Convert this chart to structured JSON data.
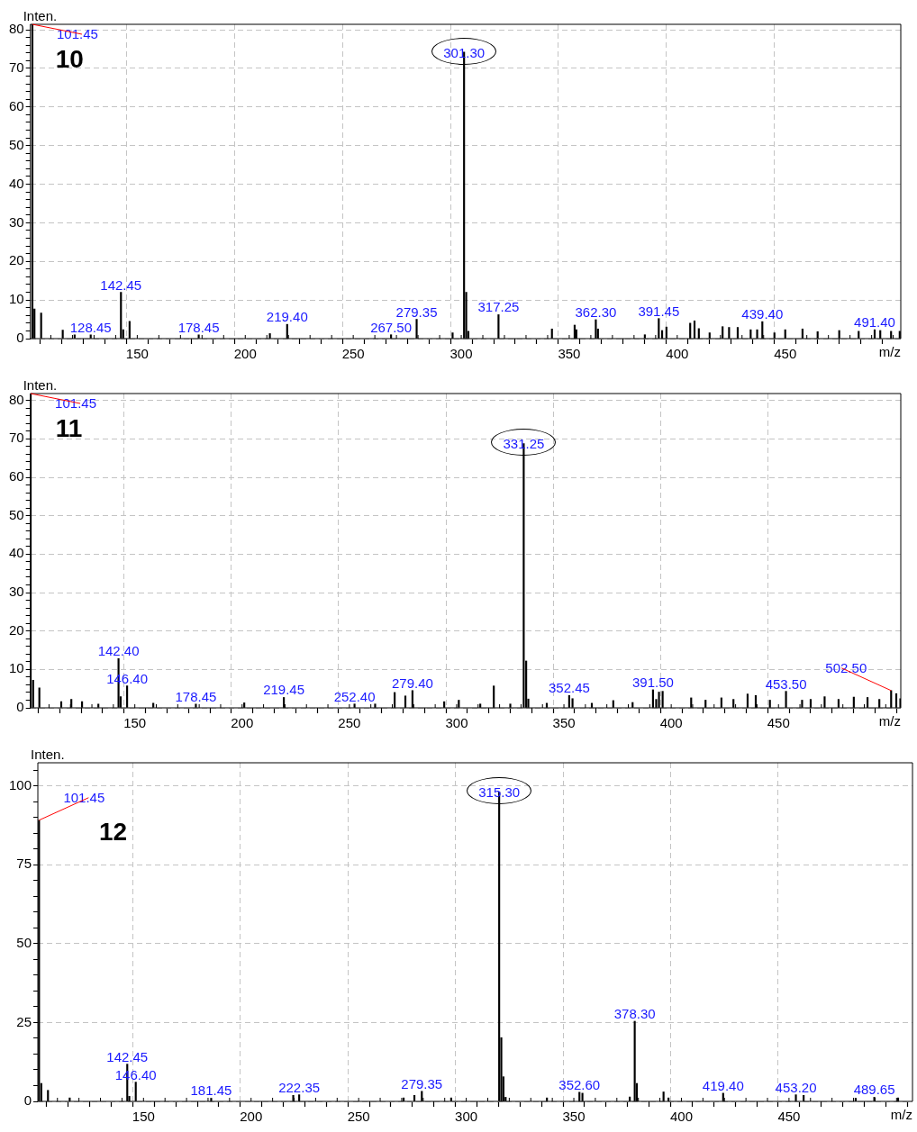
{
  "chart_data": [
    {
      "type": "bar",
      "xlabel": "m/z",
      "ylabel": "Inten.",
      "annotations": [
        "10",
        {
          "text": "101.45",
          "x": 101.45,
          "y": 81.4
        },
        {
          "text": "128.45",
          "x": 128.45,
          "y": 1.0
        },
        {
          "text": "142.45",
          "x": 142.45,
          "y": 12.0
        },
        {
          "text": "178.45",
          "x": 178.45,
          "y": 1.0
        },
        {
          "text": "219.40",
          "x": 219.4,
          "y": 3.7
        },
        {
          "text": "267.50",
          "x": 267.5,
          "y": 1.0
        },
        {
          "text": "279.35",
          "x": 279.35,
          "y": 5.0
        },
        {
          "text": "301.30",
          "x": 301.3,
          "y": 74.2
        },
        {
          "text": "317.25",
          "x": 317.25,
          "y": 6.2
        },
        {
          "text": "362.30",
          "x": 362.3,
          "y": 4.9
        },
        {
          "text": "391.45",
          "x": 391.45,
          "y": 5.2
        },
        {
          "text": "439.40",
          "x": 439.4,
          "y": 4.4
        },
        {
          "text": "491.40",
          "x": 491.4,
          "y": 2.3
        }
      ],
      "color": "#000000",
      "grid": true,
      "xlim": [
        100.5,
        503.5
      ],
      "ylim": [
        0,
        81.4
      ],
      "xticks": [
        {
          "value": 110,
          "label": null
        },
        {
          "value": 120,
          "label": null
        },
        {
          "value": 130,
          "label": null
        },
        {
          "value": 140,
          "label": null
        },
        150,
        {
          "value": 160,
          "label": null
        },
        {
          "value": 170,
          "label": null
        },
        {
          "value": 180,
          "label": null
        },
        {
          "value": 190,
          "label": null
        },
        200,
        {
          "value": 210,
          "label": null
        },
        {
          "value": 220,
          "label": null
        },
        {
          "value": 230,
          "label": null
        },
        {
          "value": 240,
          "label": null
        },
        250,
        {
          "value": 260,
          "label": null
        },
        {
          "value": 270,
          "label": null
        },
        {
          "value": 280,
          "label": null
        },
        {
          "value": 290,
          "label": null
        },
        300,
        {
          "value": 310,
          "label": null
        },
        {
          "value": 320,
          "label": null
        },
        {
          "value": 330,
          "label": null
        },
        {
          "value": 340,
          "label": null
        },
        350,
        {
          "value": 360,
          "label": null
        },
        {
          "value": 370,
          "label": null
        },
        {
          "value": 380,
          "label": null
        },
        {
          "value": 390,
          "label": null
        },
        400,
        {
          "value": 410,
          "label": null
        },
        {
          "value": 420,
          "label": null
        },
        {
          "value": 430,
          "label": null
        },
        {
          "value": 440,
          "label": null
        },
        450,
        {
          "value": 460,
          "label": null
        },
        {
          "value": 470,
          "label": null
        },
        {
          "value": 480,
          "label": null
        },
        {
          "value": 490,
          "label": null
        },
        {
          "value": 500,
          "label": null
        }
      ],
      "yticks": [
        0,
        {
          "value": 2,
          "label": null
        },
        {
          "value": 4,
          "label": null
        },
        {
          "value": 6,
          "label": null
        },
        {
          "value": 8,
          "label": null
        },
        10,
        {
          "value": 12,
          "label": null
        },
        {
          "value": 14,
          "label": null
        },
        {
          "value": 16,
          "label": null
        },
        {
          "value": 18,
          "label": null
        },
        20,
        {
          "value": 22,
          "label": null
        },
        {
          "value": 24,
          "label": null
        },
        {
          "value": 26,
          "label": null
        },
        {
          "value": 28,
          "label": null
        },
        30,
        {
          "value": 32,
          "label": null
        },
        {
          "value": 34,
          "label": null
        },
        {
          "value": 36,
          "label": null
        },
        {
          "value": 38,
          "label": null
        },
        40,
        {
          "value": 42,
          "label": null
        },
        {
          "value": 44,
          "label": null
        },
        {
          "value": 46,
          "label": null
        },
        {
          "value": 48,
          "label": null
        },
        50,
        {
          "value": 52,
          "label": null
        },
        {
          "value": 54,
          "label": null
        },
        {
          "value": 56,
          "label": null
        },
        {
          "value": 58,
          "label": null
        },
        60,
        {
          "value": 62,
          "label": null
        },
        {
          "value": 64,
          "label": null
        },
        {
          "value": 66,
          "label": null
        },
        {
          "value": 68,
          "label": null
        },
        70,
        {
          "value": 72,
          "label": null
        },
        {
          "value": 74,
          "label": null
        },
        {
          "value": 76,
          "label": null
        },
        {
          "value": 78,
          "label": null
        },
        80
      ],
      "x": [
        101.45,
        102.4,
        105.5,
        115.5,
        121,
        128.45,
        142.45,
        143.5,
        146.45,
        178.45,
        211.4,
        219.4,
        267.5,
        279.35,
        296,
        301.3,
        302.3,
        303.3,
        317.25,
        342,
        352.5,
        353.3,
        362.3,
        363.3,
        385,
        391.45,
        393,
        395,
        406,
        408,
        410,
        415,
        421,
        424,
        428,
        434,
        437,
        439.4,
        445,
        450,
        458,
        465,
        475,
        484,
        491.4,
        494,
        499,
        503
      ],
      "values": [
        81.4,
        7.7,
        6.6,
        2.2,
        1.0,
        1.0,
        12.0,
        2.3,
        4.5,
        1.0,
        1.3,
        3.7,
        1.0,
        5.0,
        1.5,
        74.2,
        12.0,
        1.9,
        6.2,
        2.5,
        3.5,
        2.3,
        4.9,
        2.5,
        1.0,
        5.2,
        2.1,
        3.0,
        4.0,
        4.6,
        2.6,
        1.5,
        3.1,
        2.9,
        2.9,
        2.3,
        2.3,
        4.4,
        1.5,
        2.3,
        2.5,
        1.8,
        2.1,
        1.9,
        2.3,
        2.1,
        1.9,
        1.9
      ]
    },
    {
      "type": "bar",
      "xlabel": "m/z",
      "ylabel": "Inten.",
      "annotations": [
        "11",
        {
          "text": "101.45",
          "x": 101.45,
          "y": 81.8
        },
        {
          "text": "142.40",
          "x": 142.4,
          "y": 12.8
        },
        {
          "text": "146.40",
          "x": 146.4,
          "y": 5.7
        },
        {
          "text": "178.45",
          "x": 178.45,
          "y": 1.0
        },
        {
          "text": "219.45",
          "x": 219.45,
          "y": 2.7
        },
        {
          "text": "252.40",
          "x": 252.4,
          "y": 1.0
        },
        {
          "text": "279.40",
          "x": 279.4,
          "y": 4.5
        },
        {
          "text": "331.25",
          "x": 331.25,
          "y": 68.8
        },
        {
          "text": "352.45",
          "x": 352.45,
          "y": 3.2
        },
        {
          "text": "391.50",
          "x": 391.5,
          "y": 4.7
        },
        {
          "text": "453.50",
          "x": 453.5,
          "y": 4.3
        },
        {
          "text": "502.50",
          "x": 502.5,
          "y": 4.5
        }
      ],
      "color": "#000000",
      "grid": true,
      "xlim": [
        101.3,
        507
      ],
      "ylim": [
        0,
        81.8
      ],
      "xticks": [
        {
          "value": 110,
          "label": null
        },
        {
          "value": 120,
          "label": null
        },
        {
          "value": 130,
          "label": null
        },
        {
          "value": 140,
          "label": null
        },
        150,
        {
          "value": 160,
          "label": null
        },
        {
          "value": 170,
          "label": null
        },
        {
          "value": 180,
          "label": null
        },
        {
          "value": 190,
          "label": null
        },
        200,
        {
          "value": 210,
          "label": null
        },
        {
          "value": 220,
          "label": null
        },
        {
          "value": 230,
          "label": null
        },
        {
          "value": 240,
          "label": null
        },
        250,
        {
          "value": 260,
          "label": null
        },
        {
          "value": 270,
          "label": null
        },
        {
          "value": 280,
          "label": null
        },
        {
          "value": 290,
          "label": null
        },
        300,
        {
          "value": 310,
          "label": null
        },
        {
          "value": 320,
          "label": null
        },
        {
          "value": 330,
          "label": null
        },
        {
          "value": 340,
          "label": null
        },
        350,
        {
          "value": 360,
          "label": null
        },
        {
          "value": 370,
          "label": null
        },
        {
          "value": 380,
          "label": null
        },
        {
          "value": 390,
          "label": null
        },
        400,
        {
          "value": 410,
          "label": null
        },
        {
          "value": 420,
          "label": null
        },
        {
          "value": 430,
          "label": null
        },
        {
          "value": 440,
          "label": null
        },
        450,
        {
          "value": 460,
          "label": null
        },
        {
          "value": 470,
          "label": null
        },
        {
          "value": 480,
          "label": null
        },
        {
          "value": 490,
          "label": null
        },
        {
          "value": 500,
          "label": null
        }
      ],
      "yticks": [
        0,
        {
          "value": 2,
          "label": null
        },
        {
          "value": 4,
          "label": null
        },
        {
          "value": 6,
          "label": null
        },
        {
          "value": 8,
          "label": null
        },
        10,
        {
          "value": 12,
          "label": null
        },
        {
          "value": 14,
          "label": null
        },
        {
          "value": 16,
          "label": null
        },
        {
          "value": 18,
          "label": null
        },
        20,
        {
          "value": 22,
          "label": null
        },
        {
          "value": 24,
          "label": null
        },
        {
          "value": 26,
          "label": null
        },
        {
          "value": 28,
          "label": null
        },
        30,
        {
          "value": 32,
          "label": null
        },
        {
          "value": 34,
          "label": null
        },
        {
          "value": 36,
          "label": null
        },
        {
          "value": 38,
          "label": null
        },
        40,
        {
          "value": 42,
          "label": null
        },
        {
          "value": 44,
          "label": null
        },
        {
          "value": 46,
          "label": null
        },
        {
          "value": 48,
          "label": null
        },
        50,
        {
          "value": 52,
          "label": null
        },
        {
          "value": 54,
          "label": null
        },
        {
          "value": 56,
          "label": null
        },
        {
          "value": 58,
          "label": null
        },
        60,
        {
          "value": 62,
          "label": null
        },
        {
          "value": 64,
          "label": null
        },
        {
          "value": 66,
          "label": null
        },
        {
          "value": 68,
          "label": null
        },
        70,
        {
          "value": 72,
          "label": null
        },
        {
          "value": 74,
          "label": null
        },
        {
          "value": 76,
          "label": null
        },
        {
          "value": 78,
          "label": null
        },
        80
      ],
      "x": [
        101.45,
        102.6,
        105.5,
        115.7,
        120.4,
        125.4,
        133,
        142.4,
        143.4,
        146.4,
        158.6,
        178.45,
        201,
        219.45,
        252.4,
        262,
        271.1,
        276.1,
        279.4,
        294.2,
        301,
        311,
        317.3,
        325,
        331.25,
        332.4,
        333.4,
        342,
        352.45,
        354,
        363,
        373,
        382,
        391.5,
        393,
        394.3,
        396,
        409.3,
        416,
        423.4,
        429,
        435.6,
        439.4,
        446,
        453.5,
        461,
        465,
        471.5,
        478,
        485.1,
        491.5,
        497,
        502.5,
        504.9,
        506.8
      ],
      "values": [
        81.8,
        7.2,
        5.2,
        1.6,
        2.2,
        1.6,
        1.0,
        12.8,
        2.9,
        5.7,
        1.2,
        1.0,
        1.3,
        2.7,
        1.0,
        1.0,
        4.0,
        3.1,
        4.5,
        1.6,
        2.0,
        1.0,
        5.7,
        1.0,
        68.8,
        12.2,
        2.3,
        1.2,
        3.2,
        2.4,
        1.2,
        1.9,
        1.4,
        4.7,
        2.2,
        4.1,
        4.3,
        2.6,
        2.0,
        2.6,
        2.2,
        3.6,
        3.2,
        2.0,
        4.3,
        2.0,
        2.2,
        2.9,
        2.2,
        2.8,
        2.7,
        2.2,
        4.5,
        3.7,
        2.4
      ]
    },
    {
      "type": "bar",
      "xlabel": "m/z",
      "ylabel": "Inten.",
      "annotations": [
        "12",
        {
          "text": "101.45",
          "x": 101.45,
          "y": 89.1
        },
        {
          "text": "142.45",
          "x": 142.45,
          "y": 11.8
        },
        {
          "text": "146.40",
          "x": 146.4,
          "y": 6.1
        },
        {
          "text": "181.45",
          "x": 181.45,
          "y": 1.0
        },
        {
          "text": "222.35",
          "x": 222.35,
          "y": 2.1
        },
        {
          "text": "279.35",
          "x": 279.35,
          "y": 3.2
        },
        {
          "text": "315.30",
          "x": 315.3,
          "y": 98.1
        },
        {
          "text": "352.60",
          "x": 352.6,
          "y": 2.9
        },
        {
          "text": "378.30",
          "x": 378.3,
          "y": 25.4
        },
        {
          "text": "419.40",
          "x": 419.4,
          "y": 2.6
        },
        {
          "text": "453.20",
          "x": 453.2,
          "y": 2.1
        },
        {
          "text": "489.65",
          "x": 489.65,
          "y": 1.3
        }
      ],
      "color": "#000000",
      "grid": true,
      "xlim": [
        100.9,
        507.4
      ],
      "ylim": [
        0,
        107.3
      ],
      "xticks": [
        {
          "value": 110,
          "label": null
        },
        {
          "value": 120,
          "label": null
        },
        {
          "value": 130,
          "label": null
        },
        {
          "value": 140,
          "label": null
        },
        150,
        {
          "value": 160,
          "label": null
        },
        {
          "value": 170,
          "label": null
        },
        {
          "value": 180,
          "label": null
        },
        {
          "value": 190,
          "label": null
        },
        200,
        {
          "value": 210,
          "label": null
        },
        {
          "value": 220,
          "label": null
        },
        {
          "value": 230,
          "label": null
        },
        {
          "value": 240,
          "label": null
        },
        250,
        {
          "value": 260,
          "label": null
        },
        {
          "value": 270,
          "label": null
        },
        {
          "value": 280,
          "label": null
        },
        {
          "value": 290,
          "label": null
        },
        300,
        {
          "value": 310,
          "label": null
        },
        {
          "value": 320,
          "label": null
        },
        {
          "value": 330,
          "label": null
        },
        {
          "value": 340,
          "label": null
        },
        350,
        {
          "value": 360,
          "label": null
        },
        {
          "value": 370,
          "label": null
        },
        {
          "value": 380,
          "label": null
        },
        {
          "value": 390,
          "label": null
        },
        400,
        {
          "value": 410,
          "label": null
        },
        {
          "value": 420,
          "label": null
        },
        {
          "value": 430,
          "label": null
        },
        {
          "value": 440,
          "label": null
        },
        450,
        {
          "value": 460,
          "label": null
        },
        {
          "value": 470,
          "label": null
        },
        {
          "value": 480,
          "label": null
        },
        {
          "value": 490,
          "label": null
        },
        {
          "value": 500,
          "label": null
        }
      ],
      "yticks": [
        0,
        {
          "value": 5,
          "label": null
        },
        {
          "value": 10,
          "label": null
        },
        {
          "value": 15,
          "label": null
        },
        {
          "value": 20,
          "label": null
        },
        25,
        {
          "value": 30,
          "label": null
        },
        {
          "value": 35,
          "label": null
        },
        {
          "value": 40,
          "label": null
        },
        {
          "value": 45,
          "label": null
        },
        50,
        {
          "value": 55,
          "label": null
        },
        {
          "value": 60,
          "label": null
        },
        {
          "value": 65,
          "label": null
        },
        {
          "value": 70,
          "label": null
        },
        75,
        {
          "value": 80,
          "label": null
        },
        {
          "value": 85,
          "label": null
        },
        {
          "value": 90,
          "label": null
        },
        {
          "value": 95,
          "label": null
        },
        100,
        {
          "value": 105,
          "label": null
        }
      ],
      "x": [
        101.45,
        102.5,
        105.6,
        115.7,
        142.45,
        143.4,
        146.4,
        181.45,
        219.6,
        222.35,
        270.9,
        275.9,
        279.35,
        293,
        315.3,
        316.3,
        317.3,
        318.3,
        337.5,
        352.6,
        354,
        376,
        378.3,
        379.3,
        391.7,
        394,
        419.4,
        453.2,
        456.8,
        481,
        489.65,
        500.7
      ],
      "values": [
        89.1,
        5.7,
        3.5,
        1.1,
        11.8,
        1.6,
        6.1,
        1.0,
        1.9,
        2.1,
        1.1,
        1.9,
        3.2,
        1.1,
        98.1,
        20.2,
        7.8,
        1.3,
        1.1,
        2.9,
        2.6,
        1.4,
        25.4,
        5.7,
        3.0,
        1.1,
        2.6,
        2.1,
        1.9,
        1.0,
        1.3,
        1.1
      ]
    }
  ]
}
